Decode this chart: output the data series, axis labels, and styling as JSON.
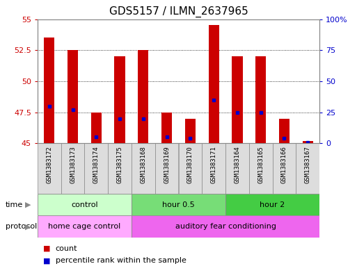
{
  "title": "GDS5157 / ILMN_2637965",
  "samples": [
    "GSM1383172",
    "GSM1383173",
    "GSM1383174",
    "GSM1383175",
    "GSM1383168",
    "GSM1383169",
    "GSM1383170",
    "GSM1383171",
    "GSM1383164",
    "GSM1383165",
    "GSM1383166",
    "GSM1383167"
  ],
  "count_values": [
    53.5,
    52.5,
    47.5,
    52.0,
    52.5,
    47.5,
    47.0,
    54.5,
    52.0,
    52.0,
    47.0,
    45.2
  ],
  "percentile_values": [
    30,
    27,
    5,
    20,
    20,
    5,
    4,
    35,
    25,
    25,
    4,
    1
  ],
  "ylim_left": [
    45,
    55
  ],
  "ylim_right": [
    0,
    100
  ],
  "yticks_left": [
    45,
    47.5,
    50,
    52.5,
    55
  ],
  "yticks_right": [
    0,
    25,
    50,
    75,
    100
  ],
  "bar_color": "#cc0000",
  "dot_color": "#0000cc",
  "bar_bottom": 45,
  "time_groups": [
    {
      "label": "control",
      "start": 0,
      "end": 4,
      "color": "#ccffcc"
    },
    {
      "label": "hour 0.5",
      "start": 4,
      "end": 8,
      "color": "#77dd77"
    },
    {
      "label": "hour 2",
      "start": 8,
      "end": 12,
      "color": "#44cc44"
    }
  ],
  "protocol_groups": [
    {
      "label": "home cage control",
      "start": 0,
      "end": 4,
      "color": "#ffaaff"
    },
    {
      "label": "auditory fear conditioning",
      "start": 4,
      "end": 12,
      "color": "#ee66ee"
    }
  ],
  "time_label": "time",
  "protocol_label": "protocol",
  "legend_count_label": "count",
  "legend_percentile_label": "percentile rank within the sample",
  "background_color": "#ffffff",
  "plot_bg_color": "#ffffff",
  "sample_bg_color": "#dddddd",
  "left_axis_color": "#cc0000",
  "right_axis_color": "#0000cc",
  "grid_color": "#000000",
  "border_color": "#888888"
}
